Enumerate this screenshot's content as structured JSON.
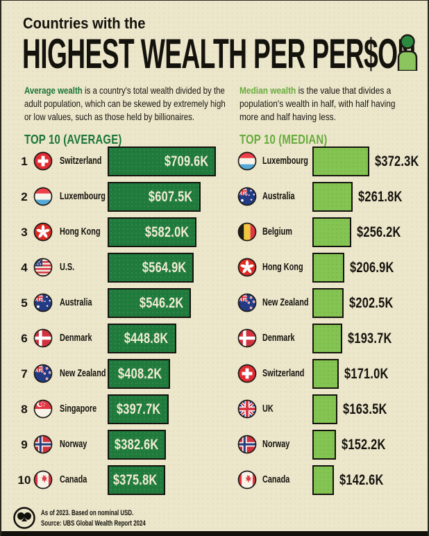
{
  "header": {
    "kicker": "Countries with the",
    "title": "HIGHEST WEALTH PER PER$ON"
  },
  "intro": {
    "average": {
      "lead": "Average wealth",
      "text": " is a country's total wealth divided by the adult population, which can be skewed by extremely high or low values, such as those held by billionaires."
    },
    "median": {
      "lead": "Median wealth",
      "text": " is the value that divides a population's wealth in half, with half having more and half having less."
    }
  },
  "columns": {
    "average": {
      "heading": "TOP 10 (AVERAGE)",
      "rows": [
        {
          "rank": "1",
          "country": "Switzerland",
          "flag": "switzerland",
          "value": 709.6,
          "label": "$709.6K"
        },
        {
          "rank": "2",
          "country": "Luxembourg",
          "flag": "luxembourg",
          "value": 607.5,
          "label": "$607.5K"
        },
        {
          "rank": "3",
          "country": "Hong Kong",
          "flag": "hongkong",
          "value": 582.0,
          "label": "$582.0K"
        },
        {
          "rank": "4",
          "country": "U.S.",
          "flag": "us",
          "value": 564.9,
          "label": "$564.9K"
        },
        {
          "rank": "5",
          "country": "Australia",
          "flag": "australia",
          "value": 546.2,
          "label": "$546.2K"
        },
        {
          "rank": "6",
          "country": "Denmark",
          "flag": "denmark",
          "value": 448.8,
          "label": "$448.8K"
        },
        {
          "rank": "7",
          "country": "New Zealand",
          "flag": "newzealand",
          "value": 408.2,
          "label": "$408.2K"
        },
        {
          "rank": "8",
          "country": "Singapore",
          "flag": "singapore",
          "value": 397.7,
          "label": "$397.7K"
        },
        {
          "rank": "9",
          "country": "Norway",
          "flag": "norway",
          "value": 382.6,
          "label": "$382.6K"
        },
        {
          "rank": "10",
          "country": "Canada",
          "flag": "canada",
          "value": 375.8,
          "label": "$375.8K"
        }
      ]
    },
    "median": {
      "heading": "TOP 10 (MEDIAN)",
      "rows": [
        {
          "country": "Luxembourg",
          "flag": "luxembourg",
          "value": 372.3,
          "label": "$372.3K"
        },
        {
          "country": "Australia",
          "flag": "australia",
          "value": 261.8,
          "label": "$261.8K"
        },
        {
          "country": "Belgium",
          "flag": "belgium",
          "value": 256.2,
          "label": "$256.2K"
        },
        {
          "country": "Hong Kong",
          "flag": "hongkong",
          "value": 206.9,
          "label": "$206.9K"
        },
        {
          "country": "New Zealand",
          "flag": "newzealand",
          "value": 202.5,
          "label": "$202.5K"
        },
        {
          "country": "Denmark",
          "flag": "denmark",
          "value": 193.7,
          "label": "$193.7K"
        },
        {
          "country": "Switzerland",
          "flag": "switzerland",
          "value": 171.0,
          "label": "$171.0K"
        },
        {
          "country": "UK",
          "flag": "uk",
          "value": 163.5,
          "label": "$163.5K"
        },
        {
          "country": "Norway",
          "flag": "norway",
          "value": 152.2,
          "label": "$152.2K"
        },
        {
          "country": "Canada",
          "flag": "canada",
          "value": 142.6,
          "label": "$142.6K"
        }
      ]
    }
  },
  "footer": {
    "note_line1": "As of 2023. Based on nominal USD.",
    "note_line2": "Source: UBS Global Wealth Report 2024"
  },
  "colors": {
    "paper": "#ece6cb",
    "dark_green": "#1a7539",
    "light_green_text": "#67ac3c",
    "avg_bar": "#1f7a3c",
    "med_bar": "#84c452",
    "ink": "#14120c"
  },
  "chart_data": [
    {
      "type": "bar",
      "title": "TOP 10 (AVERAGE)",
      "categories": [
        "Switzerland",
        "Luxembourg",
        "Hong Kong",
        "U.S.",
        "Australia",
        "Denmark",
        "New Zealand",
        "Singapore",
        "Norway",
        "Canada"
      ],
      "values": [
        709.6,
        607.5,
        582.0,
        564.9,
        546.2,
        448.8,
        408.2,
        397.7,
        382.6,
        375.8
      ],
      "unit": "USD thousands per adult",
      "orientation": "horizontal",
      "value_labels": [
        "$709.6K",
        "$607.5K",
        "$582.0K",
        "$564.9K",
        "$546.2K",
        "$448.8K",
        "$408.2K",
        "$397.7K",
        "$382.6K",
        "$375.8K"
      ],
      "xlabel": "",
      "ylabel": "",
      "legend": "none",
      "grid": false
    },
    {
      "type": "bar",
      "title": "TOP 10 (MEDIAN)",
      "categories": [
        "Luxembourg",
        "Australia",
        "Belgium",
        "Hong Kong",
        "New Zealand",
        "Denmark",
        "Switzerland",
        "UK",
        "Norway",
        "Canada"
      ],
      "values": [
        372.3,
        261.8,
        256.2,
        206.9,
        202.5,
        193.7,
        171.0,
        163.5,
        152.2,
        142.6
      ],
      "unit": "USD thousands per adult",
      "orientation": "horizontal",
      "value_labels": [
        "$372.3K",
        "$261.8K",
        "$256.2K",
        "$206.9K",
        "$202.5K",
        "$193.7K",
        "$171.0K",
        "$163.5K",
        "$152.2K",
        "$142.6K"
      ],
      "xlabel": "",
      "ylabel": "",
      "legend": "none",
      "grid": false
    }
  ]
}
